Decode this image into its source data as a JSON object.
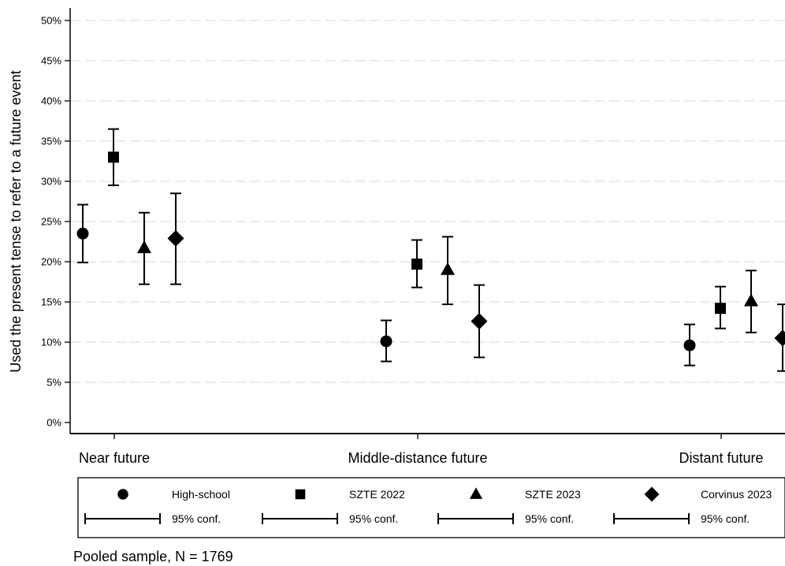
{
  "chart_data": {
    "type": "scatter",
    "title": "",
    "xlabel": "",
    "ylabel": "Used the present tense to refer to a future event",
    "categories": [
      "Near future",
      "Middle-distance future",
      "Distant future"
    ],
    "ylim": [
      0,
      50
    ],
    "yticks": [
      "0%",
      "5%",
      "10%",
      "15%",
      "20%",
      "25%",
      "30%",
      "35%",
      "40%",
      "45%",
      "50%"
    ],
    "grid": true,
    "series": [
      {
        "name": "High-school",
        "marker": "circle",
        "values": [
          23.5,
          10.1,
          9.6
        ],
        "ci_low": [
          19.9,
          7.6,
          7.1
        ],
        "ci_high": [
          27.1,
          12.7,
          12.2
        ]
      },
      {
        "name": "SZTE 2022",
        "marker": "square",
        "values": [
          33.0,
          19.7,
          14.2
        ],
        "ci_low": [
          29.5,
          16.8,
          11.7
        ],
        "ci_high": [
          36.5,
          22.7,
          16.9
        ]
      },
      {
        "name": "SZTE 2023",
        "marker": "triangle",
        "values": [
          21.7,
          19.0,
          15.1
        ],
        "ci_low": [
          17.2,
          14.7,
          11.2
        ],
        "ci_high": [
          26.1,
          23.1,
          18.9
        ]
      },
      {
        "name": "Corvinus 2023",
        "marker": "diamond",
        "values": [
          22.9,
          12.6,
          10.5
        ],
        "ci_low": [
          17.2,
          8.1,
          6.4
        ],
        "ci_high": [
          28.5,
          17.1,
          14.7
        ]
      }
    ],
    "legend": {
      "placement": "bottom",
      "ci_label": "95% conf."
    },
    "note": "Pooled sample, N = 1769"
  }
}
